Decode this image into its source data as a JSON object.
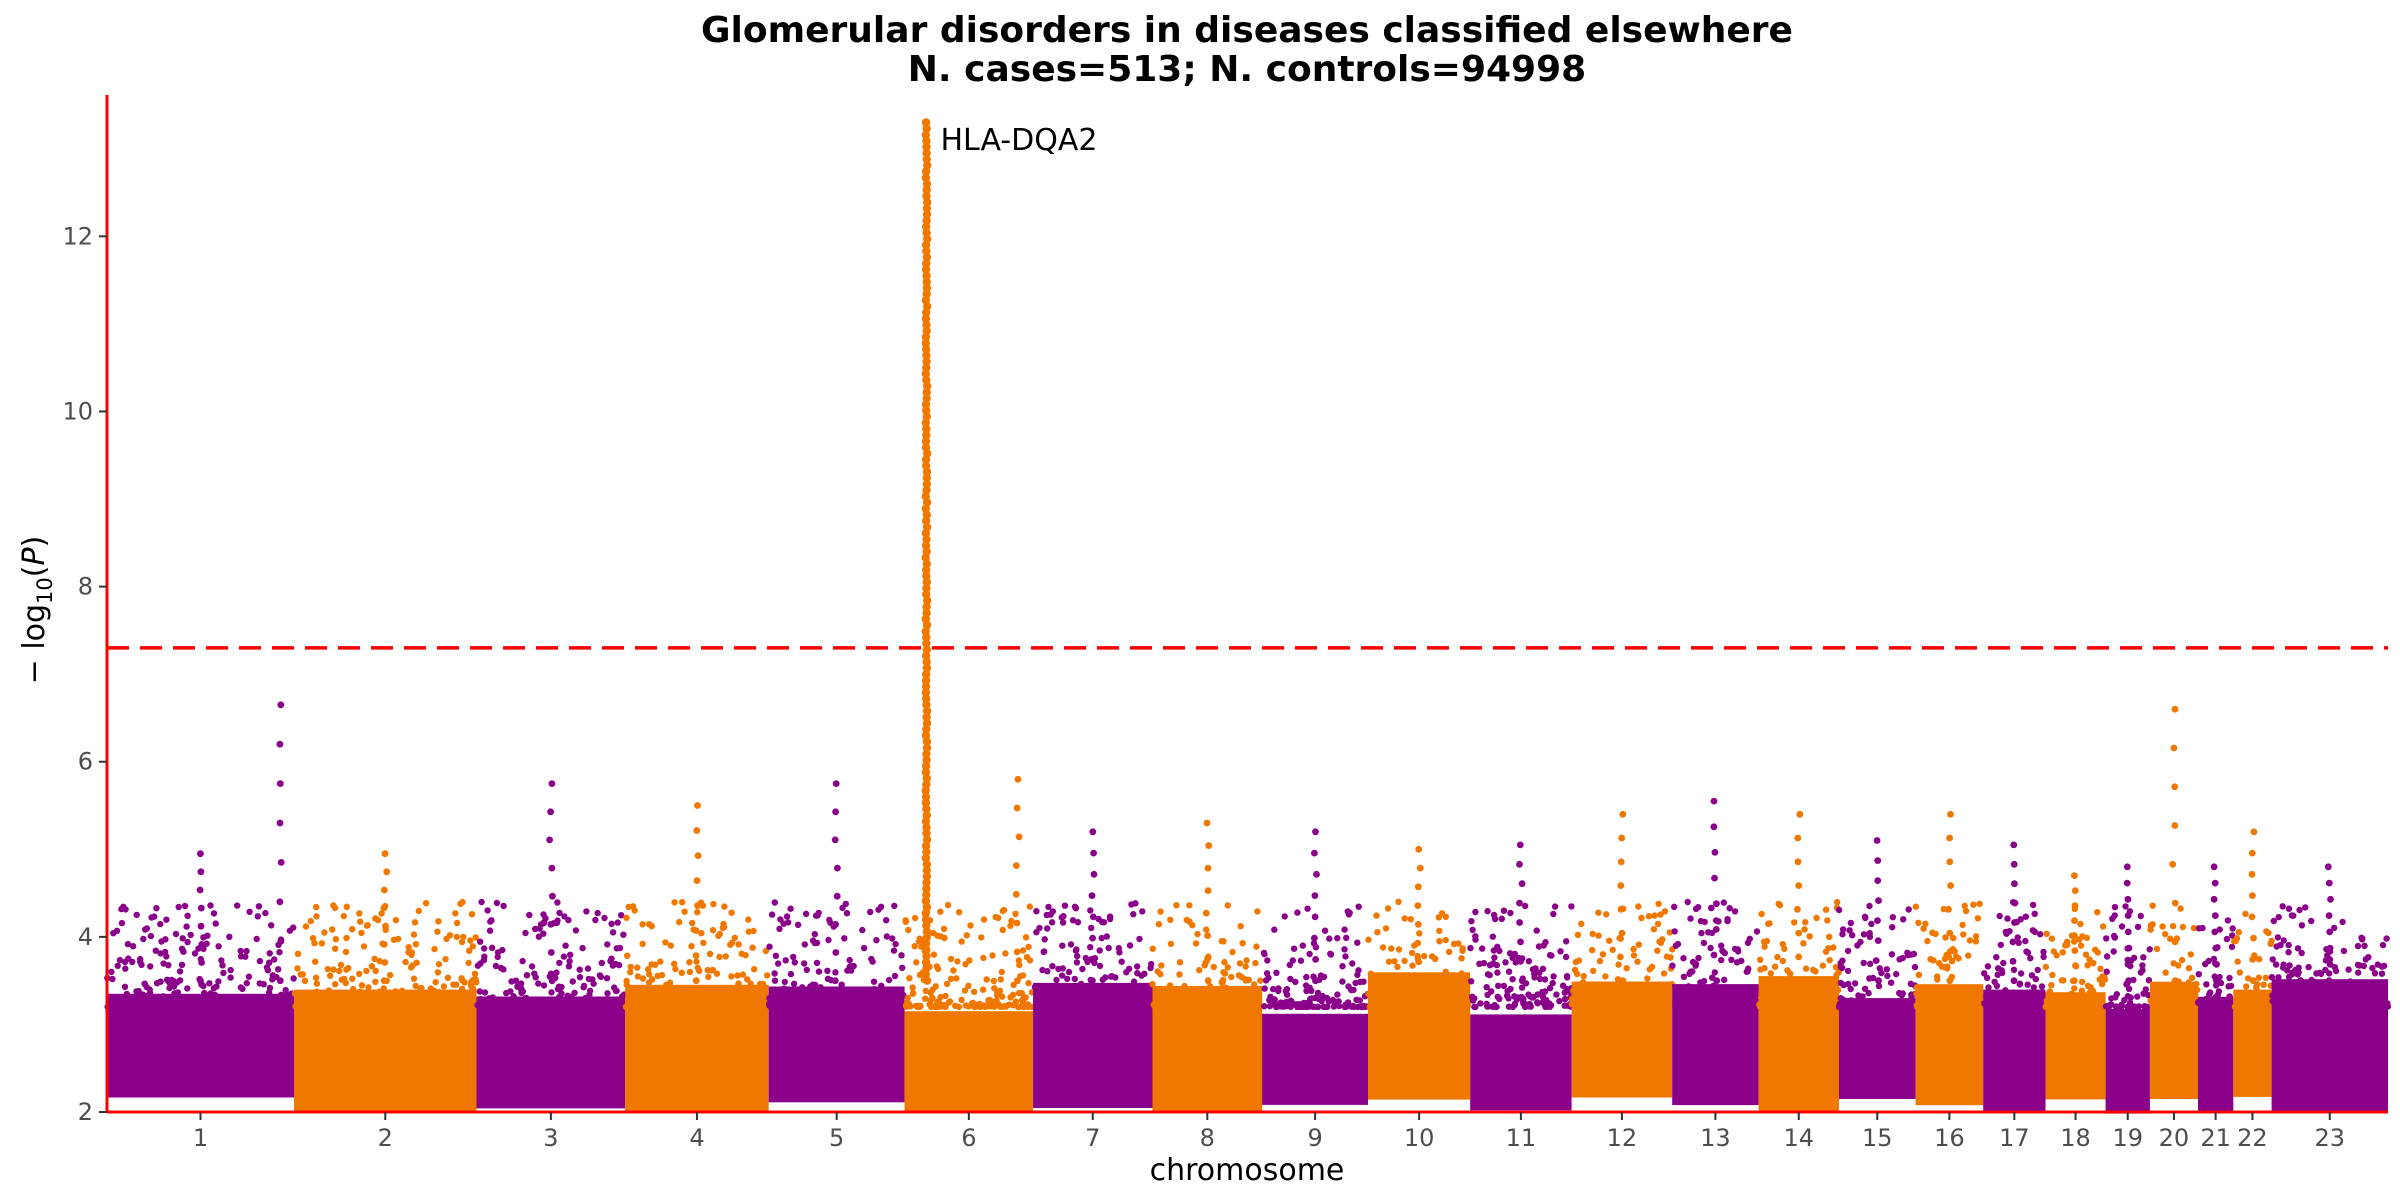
{
  "chart_data": {
    "type": "scatter",
    "subtype": "manhattan",
    "title": "Glomerular disorders in diseases classified elsewhere",
    "subtitle": "N. cases=513; N. controls=94998",
    "xlabel": "chromosome",
    "ylabel": "− log10(P)",
    "ylim": [
      2,
      13.5
    ],
    "yticks": [
      2,
      4,
      6,
      8,
      10,
      12
    ],
    "grid": false,
    "legend": "none",
    "significance_line": {
      "y": 7.3,
      "style": "dashed",
      "color": "#ff0000"
    },
    "axis_color": "#ff0000",
    "colors": {
      "odd": "#8b008b",
      "even": "#f07800"
    },
    "chromosomes": [
      "1",
      "2",
      "3",
      "4",
      "5",
      "6",
      "7",
      "8",
      "9",
      "10",
      "11",
      "12",
      "13",
      "14",
      "15",
      "16",
      "17",
      "18",
      "19",
      "20",
      "21",
      "22",
      "23"
    ],
    "peaks": [
      {
        "chromosome": "1",
        "max_logp": 4.95
      },
      {
        "chromosome": "1",
        "max_logp": 6.65
      },
      {
        "chromosome": "2",
        "max_logp": 4.95
      },
      {
        "chromosome": "3",
        "max_logp": 5.75
      },
      {
        "chromosome": "4",
        "max_logp": 5.5
      },
      {
        "chromosome": "5",
        "max_logp": 5.75
      },
      {
        "chromosome": "6",
        "max_logp": 13.3,
        "label": "HLA-DQA2"
      },
      {
        "chromosome": "6",
        "max_logp": 5.8
      },
      {
        "chromosome": "7",
        "max_logp": 5.2
      },
      {
        "chromosome": "8",
        "max_logp": 5.3
      },
      {
        "chromosome": "9",
        "max_logp": 5.2
      },
      {
        "chromosome": "10",
        "max_logp": 5.0
      },
      {
        "chromosome": "11",
        "max_logp": 5.05
      },
      {
        "chromosome": "12",
        "max_logp": 5.4
      },
      {
        "chromosome": "13",
        "max_logp": 5.55
      },
      {
        "chromosome": "14",
        "max_logp": 5.4
      },
      {
        "chromosome": "15",
        "max_logp": 5.1
      },
      {
        "chromosome": "16",
        "max_logp": 5.4
      },
      {
        "chromosome": "17",
        "max_logp": 5.05
      },
      {
        "chromosome": "18",
        "max_logp": 4.7
      },
      {
        "chromosome": "19",
        "max_logp": 4.8
      },
      {
        "chromosome": "20",
        "max_logp": 6.6
      },
      {
        "chromosome": "21",
        "max_logp": 4.8
      },
      {
        "chromosome": "22",
        "max_logp": 5.2
      },
      {
        "chromosome": "23",
        "max_logp": 4.8
      }
    ],
    "annotations": [
      {
        "text": "HLA-DQA2",
        "chromosome": "6",
        "y": 13.1
      }
    ]
  }
}
